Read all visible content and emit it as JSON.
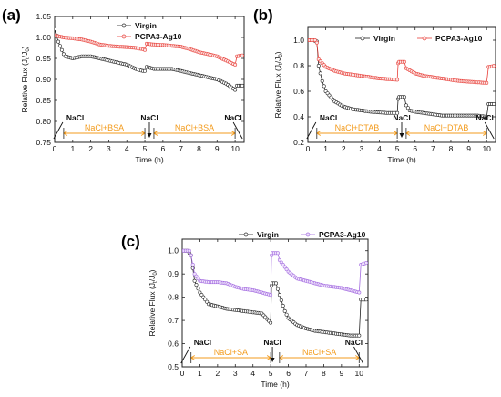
{
  "colors": {
    "virgin": "#222222",
    "pcpa_red": "#E8403A",
    "pcpa_purple": "#A36BE0",
    "segment": "#F39B1C"
  },
  "chart_data": [
    {
      "type": "line",
      "panel_label": "(a)",
      "xlabel": "Time (h)",
      "ylabel": "Relative Flux (J_t/J_0)",
      "xlim": [
        0,
        10.5
      ],
      "ylim": [
        0.75,
        1.05
      ],
      "xticks": [
        "0",
        "1",
        "2",
        "3",
        "4",
        "5",
        "6",
        "7",
        "8",
        "9",
        "10"
      ],
      "yticks": [
        "0.75",
        "0.80",
        "0.85",
        "0.90",
        "0.95",
        "1.00",
        "1.05"
      ],
      "legend_position": "top-right",
      "series": [
        {
          "name": "Virgin",
          "style": "virgin",
          "x": [
            0,
            0.2,
            0.4,
            0.5,
            0.6,
            1,
            1.5,
            2,
            2.5,
            3,
            3.5,
            4,
            4.5,
            4.9,
            5,
            5.1,
            5.5,
            6,
            6.5,
            7,
            7.5,
            8,
            8.5,
            9,
            9.5,
            10,
            10.1,
            10.5
          ],
          "y": [
            1.02,
            0.99,
            0.97,
            0.96,
            0.955,
            0.95,
            0.955,
            0.955,
            0.95,
            0.945,
            0.94,
            0.935,
            0.925,
            0.92,
            0.92,
            0.93,
            0.925,
            0.925,
            0.925,
            0.92,
            0.915,
            0.91,
            0.905,
            0.9,
            0.89,
            0.875,
            0.885,
            0.885
          ]
        },
        {
          "name": "PCPA3-Ag10",
          "style": "red",
          "x": [
            0,
            0.5,
            1,
            1.5,
            2,
            2.5,
            3,
            3.5,
            4,
            4.5,
            4.9,
            5,
            5.1,
            5.5,
            6,
            6.5,
            7,
            7.5,
            8,
            8.5,
            9,
            9.5,
            10,
            10.1,
            10.5
          ],
          "y": [
            1.005,
            1.0,
            0.998,
            0.995,
            0.99,
            0.983,
            0.98,
            0.978,
            0.977,
            0.975,
            0.972,
            0.97,
            0.985,
            0.983,
            0.982,
            0.98,
            0.978,
            0.972,
            0.965,
            0.96,
            0.955,
            0.945,
            0.935,
            0.955,
            0.958
          ]
        }
      ],
      "annotations": [
        {
          "text": "NaCl",
          "x": 0.45
        },
        {
          "text": "NaCl",
          "x": 5.25
        },
        {
          "text": "NaCl",
          "x": 9.9
        }
      ],
      "segments": [
        {
          "text": "NaCl+BSA",
          "x0": 0.5,
          "x1": 5.0
        },
        {
          "text": "NaCl+BSA",
          "x0": 5.5,
          "x1": 10.0
        }
      ]
    },
    {
      "type": "line",
      "panel_label": "(b)",
      "xlabel": "Time (h)",
      "ylabel": "Relative Flux (J_t/J_0)",
      "xlim": [
        0,
        10.5
      ],
      "ylim": [
        0.2,
        1.1
      ],
      "xticks": [
        "0",
        "1",
        "2",
        "3",
        "4",
        "5",
        "6",
        "7",
        "8",
        "9",
        "10"
      ],
      "yticks": [
        "0.2",
        "0.4",
        "0.6",
        "0.8",
        "1.0"
      ],
      "legend_position": "top",
      "series": [
        {
          "name": "Virgin",
          "style": "virgin",
          "x": [
            0,
            0.3,
            0.5,
            0.6,
            0.8,
            1,
            1.5,
            2,
            2.5,
            3,
            3.5,
            4,
            4.5,
            5,
            5.05,
            5.1,
            5.4,
            5.5,
            5.7,
            6,
            6.5,
            7,
            7.5,
            8,
            8.5,
            9,
            9.5,
            10,
            10.1,
            10.5
          ],
          "y": [
            1.0,
            1.0,
            0.99,
            0.8,
            0.68,
            0.6,
            0.52,
            0.48,
            0.46,
            0.45,
            0.44,
            0.435,
            0.43,
            0.43,
            0.54,
            0.555,
            0.555,
            0.49,
            0.45,
            0.44,
            0.43,
            0.42,
            0.41,
            0.41,
            0.41,
            0.41,
            0.41,
            0.4,
            0.5,
            0.5
          ]
        },
        {
          "name": "PCPA3-Ag10",
          "style": "red",
          "x": [
            0,
            0.4,
            0.5,
            0.6,
            1,
            1.5,
            2,
            2.5,
            3,
            3.5,
            4,
            4.5,
            5,
            5.05,
            5.1,
            5.4,
            5.5,
            6,
            6.5,
            7,
            7.5,
            8,
            8.5,
            9,
            9.5,
            10,
            10.1,
            10.5
          ],
          "y": [
            1.0,
            1.0,
            0.98,
            0.85,
            0.79,
            0.76,
            0.74,
            0.73,
            0.72,
            0.71,
            0.7,
            0.695,
            0.69,
            0.82,
            0.83,
            0.83,
            0.78,
            0.74,
            0.72,
            0.71,
            0.7,
            0.69,
            0.68,
            0.675,
            0.67,
            0.665,
            0.79,
            0.8
          ]
        }
      ],
      "annotations": [
        {
          "text": "NaCl",
          "x": 0.45
        },
        {
          "text": "NaCl",
          "x": 5.25
        },
        {
          "text": "NaCl",
          "x": 9.9
        }
      ],
      "segments": [
        {
          "text": "NaCl+DTAB",
          "x0": 0.5,
          "x1": 5.0
        },
        {
          "text": "NaCl+DTAB",
          "x0": 5.5,
          "x1": 10.0
        }
      ]
    },
    {
      "type": "line",
      "panel_label": "(c)",
      "xlabel": "Time (h)",
      "ylabel": "Relative Flux (J_t/J_0)",
      "xlim": [
        0,
        10.5
      ],
      "ylim": [
        0.5,
        1.05
      ],
      "xticks": [
        "0",
        "1",
        "2",
        "3",
        "4",
        "5",
        "6",
        "7",
        "8",
        "9",
        "10"
      ],
      "yticks": [
        "0.5",
        "0.6",
        "0.7",
        "0.8",
        "0.9",
        "1.0"
      ],
      "legend_position": "top",
      "series": [
        {
          "name": "Virgin",
          "style": "virgin",
          "x": [
            0,
            0.3,
            0.5,
            0.7,
            1,
            1.3,
            1.5,
            2,
            2.5,
            3,
            3.5,
            4,
            4.5,
            5,
            5.05,
            5.1,
            5.3,
            5.5,
            5.8,
            6,
            6.5,
            7,
            7.5,
            8,
            8.5,
            9,
            9.5,
            10,
            10.1,
            10.5
          ],
          "y": [
            1.0,
            1.0,
            0.98,
            0.87,
            0.82,
            0.79,
            0.77,
            0.76,
            0.75,
            0.745,
            0.74,
            0.735,
            0.73,
            0.69,
            0.85,
            0.86,
            0.86,
            0.81,
            0.74,
            0.71,
            0.68,
            0.665,
            0.655,
            0.65,
            0.645,
            0.64,
            0.635,
            0.635,
            0.79,
            0.79
          ]
        },
        {
          "name": "PCPA3-Ag10",
          "style": "purple",
          "x": [
            0,
            0.4,
            0.5,
            0.7,
            1,
            1.5,
            2,
            2.5,
            3,
            3.5,
            4,
            4.5,
            5,
            5.05,
            5.1,
            5.4,
            5.5,
            5.8,
            6,
            6.5,
            7,
            7.5,
            8,
            8.5,
            9,
            9.5,
            10,
            10.1,
            10.5
          ],
          "y": [
            1.0,
            1.0,
            0.98,
            0.9,
            0.87,
            0.865,
            0.865,
            0.86,
            0.845,
            0.835,
            0.83,
            0.82,
            0.81,
            0.98,
            0.99,
            0.99,
            0.96,
            0.93,
            0.91,
            0.88,
            0.87,
            0.86,
            0.85,
            0.845,
            0.84,
            0.83,
            0.82,
            0.94,
            0.95
          ]
        }
      ],
      "annotations": [
        {
          "text": "NaCl",
          "x": 0.45
        },
        {
          "text": "NaCl",
          "x": 5.1
        },
        {
          "text": "NaCl",
          "x": 9.7
        }
      ],
      "segments": [
        {
          "text": "NaCl+SA",
          "x0": 0.5,
          "x1": 5.0
        },
        {
          "text": "NaCl+SA",
          "x0": 5.5,
          "x1": 10.0
        }
      ]
    }
  ]
}
